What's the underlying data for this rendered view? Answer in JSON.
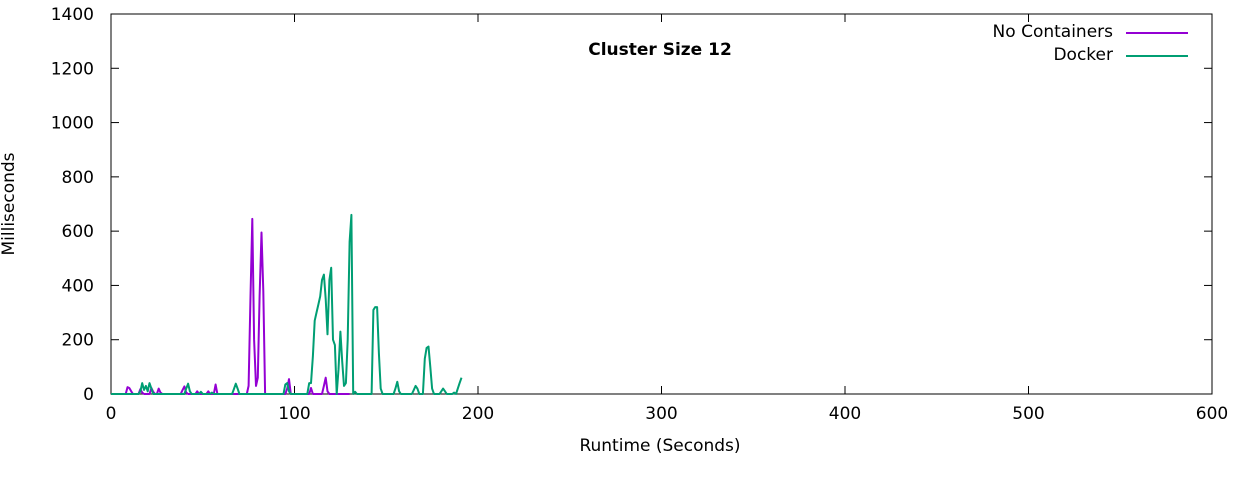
{
  "chart_data": {
    "type": "line",
    "title": "Cluster Size 12",
    "xlabel": "Runtime (Seconds)",
    "ylabel": "Milliseconds",
    "xlim": [
      0,
      600
    ],
    "ylim": [
      0,
      1400
    ],
    "xticks": [
      0,
      100,
      200,
      300,
      400,
      500,
      600
    ],
    "yticks": [
      0,
      200,
      400,
      600,
      800,
      1000,
      1200,
      1400
    ],
    "grid": false,
    "legend_position": "top-right",
    "series": [
      {
        "name": "No Containers",
        "color": "#9400d3",
        "points": [
          [
            0,
            0
          ],
          [
            8,
            0
          ],
          [
            9,
            25
          ],
          [
            10,
            22
          ],
          [
            11,
            10
          ],
          [
            12,
            0
          ],
          [
            15,
            0
          ],
          [
            16,
            18
          ],
          [
            17,
            5
          ],
          [
            18,
            0
          ],
          [
            21,
            0
          ],
          [
            22,
            22
          ],
          [
            23,
            8
          ],
          [
            24,
            0
          ],
          [
            25,
            0
          ],
          [
            26,
            20
          ],
          [
            27,
            5
          ],
          [
            28,
            0
          ],
          [
            38,
            0
          ],
          [
            39,
            15
          ],
          [
            40,
            28
          ],
          [
            41,
            5
          ],
          [
            42,
            0
          ],
          [
            46,
            0
          ],
          [
            47,
            10
          ],
          [
            48,
            0
          ],
          [
            52,
            0
          ],
          [
            53,
            10
          ],
          [
            54,
            0
          ],
          [
            56,
            0
          ],
          [
            57,
            35
          ],
          [
            58,
            0
          ],
          [
            74,
            0
          ],
          [
            75,
            30
          ],
          [
            76,
            360
          ],
          [
            77,
            645
          ],
          [
            78,
            200
          ],
          [
            79,
            30
          ],
          [
            80,
            60
          ],
          [
            81,
            360
          ],
          [
            82,
            595
          ],
          [
            83,
            380
          ],
          [
            84,
            0
          ],
          [
            95,
            0
          ],
          [
            96,
            20
          ],
          [
            97,
            55
          ],
          [
            98,
            0
          ],
          [
            108,
            0
          ],
          [
            109,
            22
          ],
          [
            110,
            0
          ],
          [
            115,
            0
          ],
          [
            116,
            30
          ],
          [
            117,
            60
          ],
          [
            118,
            10
          ],
          [
            119,
            0
          ],
          [
            130,
            0
          ]
        ]
      },
      {
        "name": "Docker",
        "color": "#009e73",
        "points": [
          [
            0,
            0
          ],
          [
            15,
            0
          ],
          [
            16,
            10
          ],
          [
            17,
            40
          ],
          [
            18,
            15
          ],
          [
            19,
            30
          ],
          [
            20,
            10
          ],
          [
            21,
            40
          ],
          [
            22,
            20
          ],
          [
            23,
            0
          ],
          [
            40,
            0
          ],
          [
            41,
            20
          ],
          [
            42,
            38
          ],
          [
            43,
            10
          ],
          [
            44,
            0
          ],
          [
            48,
            0
          ],
          [
            49,
            8
          ],
          [
            50,
            0
          ],
          [
            54,
            0
          ],
          [
            55,
            5
          ],
          [
            56,
            0
          ],
          [
            66,
            0
          ],
          [
            67,
            18
          ],
          [
            68,
            38
          ],
          [
            69,
            20
          ],
          [
            70,
            0
          ],
          [
            94,
            0
          ],
          [
            95,
            35
          ],
          [
            96,
            40
          ],
          [
            97,
            10
          ],
          [
            98,
            0
          ],
          [
            107,
            0
          ],
          [
            108,
            40
          ],
          [
            109,
            40
          ],
          [
            110,
            140
          ],
          [
            111,
            270
          ],
          [
            112,
            300
          ],
          [
            113,
            330
          ],
          [
            114,
            360
          ],
          [
            115,
            420
          ],
          [
            116,
            440
          ],
          [
            117,
            350
          ],
          [
            118,
            220
          ],
          [
            119,
            420
          ],
          [
            120,
            465
          ],
          [
            121,
            200
          ],
          [
            122,
            180
          ],
          [
            123,
            0
          ],
          [
            124,
            90
          ],
          [
            125,
            230
          ],
          [
            126,
            120
          ],
          [
            127,
            30
          ],
          [
            128,
            40
          ],
          [
            129,
            200
          ],
          [
            130,
            560
          ],
          [
            131,
            660
          ],
          [
            132,
            0
          ],
          [
            133,
            8
          ],
          [
            134,
            0
          ],
          [
            142,
            0
          ],
          [
            143,
            310
          ],
          [
            144,
            320
          ],
          [
            145,
            320
          ],
          [
            146,
            150
          ],
          [
            147,
            20
          ],
          [
            148,
            0
          ],
          [
            154,
            0
          ],
          [
            155,
            20
          ],
          [
            156,
            45
          ],
          [
            157,
            10
          ],
          [
            158,
            0
          ],
          [
            164,
            0
          ],
          [
            165,
            15
          ],
          [
            166,
            30
          ],
          [
            167,
            20
          ],
          [
            168,
            0
          ],
          [
            170,
            0
          ],
          [
            171,
            130
          ],
          [
            172,
            170
          ],
          [
            173,
            175
          ],
          [
            174,
            100
          ],
          [
            175,
            20
          ],
          [
            176,
            0
          ],
          [
            179,
            0
          ],
          [
            180,
            10
          ],
          [
            181,
            20
          ],
          [
            182,
            10
          ],
          [
            183,
            0
          ],
          [
            186,
            0
          ],
          [
            187,
            5
          ],
          [
            188,
            0
          ],
          [
            189,
            20
          ],
          [
            190,
            40
          ],
          [
            191,
            60
          ]
        ]
      }
    ]
  }
}
